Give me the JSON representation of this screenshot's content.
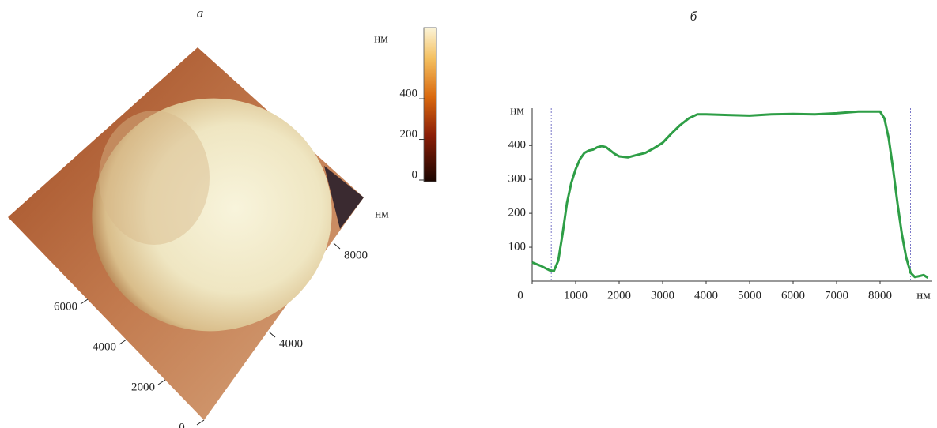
{
  "chart_data": [
    {
      "type": "surface",
      "title": "а",
      "colorbar": {
        "label": "нм",
        "lim": [
          0,
          750
        ],
        "ticks": [
          0,
          200,
          400
        ]
      },
      "xlabel": "нм",
      "xlim": [
        0,
        10000
      ],
      "xticks": [
        4000,
        8000
      ],
      "ylim": [
        0,
        10000
      ],
      "yticks": [
        0,
        2000,
        4000,
        6000
      ]
    },
    {
      "type": "line",
      "title": "б",
      "xlabel": "нм",
      "ylabel": "нм",
      "xlim": [
        0,
        9200
      ],
      "ylim": [
        0,
        510
      ],
      "xticks": [
        0,
        1000,
        2000,
        3000,
        4000,
        5000,
        6000,
        7000,
        8000
      ],
      "yticks": [
        100,
        200,
        300,
        400
      ],
      "markers": [
        440,
        8700
      ],
      "color": "#2e9e46",
      "x": [
        0,
        200,
        400,
        500,
        600,
        700,
        800,
        900,
        1000,
        1100,
        1200,
        1300,
        1400,
        1500,
        1600,
        1700,
        1800,
        1900,
        2000,
        2200,
        2400,
        2600,
        2800,
        3000,
        3200,
        3400,
        3600,
        3800,
        4000,
        4500,
        5000,
        5500,
        6000,
        6500,
        7000,
        7500,
        8000,
        8100,
        8200,
        8300,
        8400,
        8500,
        8600,
        8700,
        8800,
        8900,
        9000,
        9100
      ],
      "values": [
        55,
        45,
        32,
        30,
        60,
        140,
        230,
        290,
        330,
        360,
        378,
        385,
        388,
        395,
        398,
        395,
        385,
        375,
        368,
        365,
        372,
        378,
        392,
        408,
        435,
        460,
        480,
        492,
        492,
        490,
        488,
        492,
        493,
        492,
        495,
        500,
        500,
        480,
        420,
        330,
        230,
        140,
        70,
        25,
        12,
        15,
        18,
        10
      ]
    }
  ]
}
